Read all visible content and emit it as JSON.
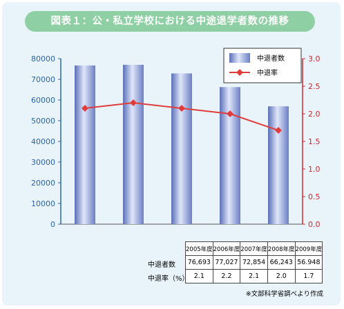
{
  "title": "図表１：公・私立学校における中途退学者数の推移",
  "chart_data": {
    "type": "bar+line",
    "categories": [
      "2005年度",
      "2006年度",
      "2007年度",
      "2008年度",
      "2009年度"
    ],
    "series": [
      {
        "name": "中退者数",
        "type": "bar",
        "axis": "left",
        "values": [
          76693,
          77027,
          72854,
          66243,
          56948
        ]
      },
      {
        "name": "中退率",
        "type": "line",
        "axis": "right",
        "values": [
          2.1,
          2.2,
          2.1,
          2.0,
          1.7
        ]
      }
    ],
    "y_left": {
      "min": 0,
      "max": 80000,
      "step": 10000,
      "ticks": [
        "0",
        "10000",
        "20000",
        "30000",
        "40000",
        "50000",
        "60000",
        "70000",
        "80000"
      ]
    },
    "y_right": {
      "min": 0,
      "max": 3.0,
      "step": 0.5,
      "ticks": [
        "0.0",
        "0.5",
        "1.0",
        "1.5",
        "2.0",
        "2.5",
        "3.0"
      ]
    },
    "legend_position": "top-right",
    "grid": false,
    "colors": {
      "bar": "#8d9fd6",
      "line": "#e03c3c",
      "left_axis": "#2b63a8",
      "right_axis": "#d9232a"
    }
  },
  "table": {
    "headers": [
      "2005年度",
      "2006年度",
      "2007年度",
      "2008年度",
      "2009年度"
    ],
    "rows": [
      {
        "label": "中退者数",
        "values": [
          "76,693",
          "77,027",
          "72,854",
          "66,243",
          "56.948"
        ]
      },
      {
        "label": "中退率（%）",
        "values": [
          "2.1",
          "2.2",
          "2.1",
          "2.0",
          "1.7"
        ]
      }
    ]
  },
  "source": "※文部科学省調べより作成"
}
